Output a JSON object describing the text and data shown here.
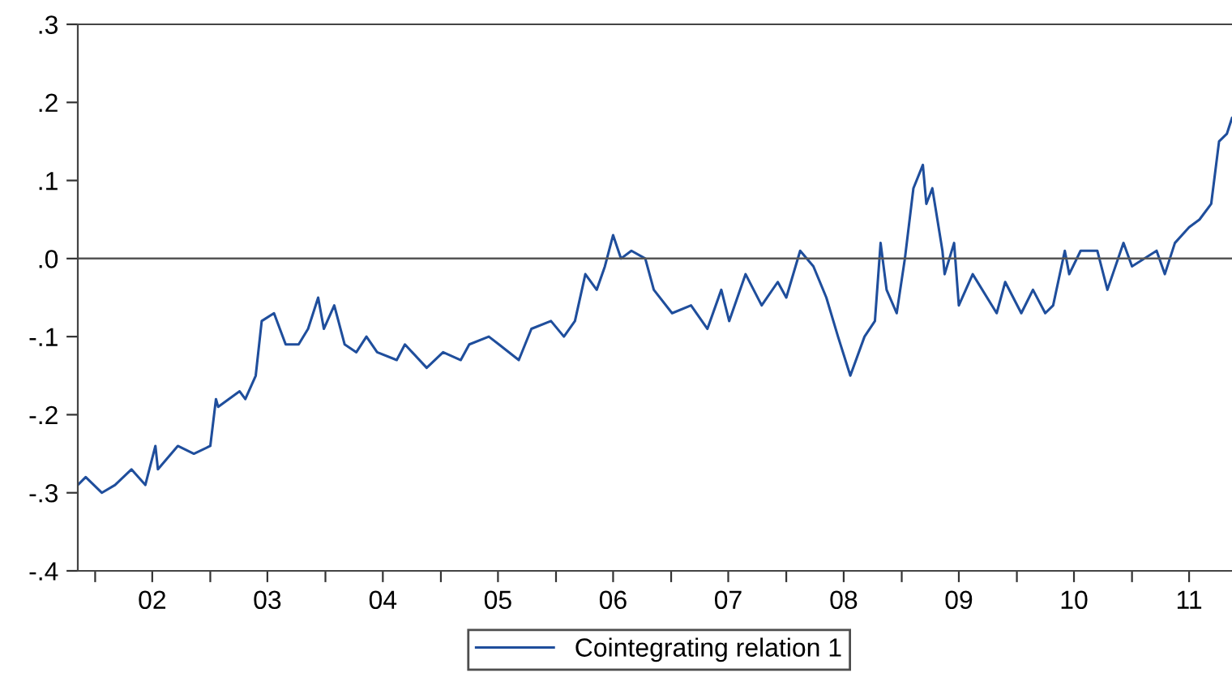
{
  "chart_data": {
    "type": "line",
    "x": [
      "2001-11-07",
      "2001-12-02",
      "2002-01-22",
      "2002-03-05",
      "2002-04-26",
      "2002-06-09",
      "2002-07-11",
      "2002-07-19",
      "2002-09-20",
      "2002-11-10",
      "2003-01-01",
      "2003-01-19",
      "2003-01-26",
      "2003-04-04",
      "2003-04-22",
      "2003-05-25",
      "2003-06-13",
      "2003-07-22",
      "2003-08-28",
      "2003-10-08",
      "2003-11-07",
      "2003-12-09",
      "2003-12-27",
      "2004-01-29",
      "2004-03-02",
      "2004-04-08",
      "2004-05-10",
      "2004-06-13",
      "2004-08-14",
      "2004-09-09",
      "2004-11-17",
      "2005-01-08",
      "2005-03-05",
      "2005-04-01",
      "2005-06-02",
      "2005-07-04",
      "2005-09-05",
      "2005-10-15",
      "2005-12-16",
      "2006-01-26",
      "2006-03-02",
      "2006-04-04",
      "2006-05-10",
      "2006-06-05",
      "2006-07-01",
      "2006-07-26",
      "2006-08-28",
      "2006-10-11",
      "2006-11-07",
      "2007-01-04",
      "2007-03-05",
      "2007-04-26",
      "2007-06-09",
      "2007-07-04",
      "2007-08-25",
      "2007-10-15",
      "2007-12-05",
      "2008-01-01",
      "2008-02-14",
      "2008-03-27",
      "2008-05-07",
      "2008-06-13",
      "2008-07-22",
      "2008-09-05",
      "2008-10-08",
      "2008-10-26",
      "2008-11-14",
      "2008-12-16",
      "2009-01-11",
      "2009-02-07",
      "2009-03-09",
      "2009-03-20",
      "2009-04-08",
      "2009-05-10",
      "2009-05-17",
      "2009-06-16",
      "2009-07-01",
      "2009-08-14",
      "2009-10-29",
      "2009-11-25",
      "2010-01-15",
      "2010-02-21",
      "2010-04-01",
      "2010-04-26",
      "2010-06-02",
      "2010-06-16",
      "2010-07-22",
      "2010-09-13",
      "2010-10-15",
      "2010-12-05",
      "2011-01-01",
      "2011-03-20",
      "2011-04-15",
      "2011-05-17",
      "2011-07-01",
      "2011-08-03",
      "2011-09-09",
      "2011-10-04",
      "2011-10-29",
      "2011-11-14"
    ],
    "series": [
      {
        "name": "Cointegrating relation 1",
        "color": "#1f4e9c",
        "values": [
          -0.29,
          -0.28,
          -0.3,
          -0.29,
          -0.27,
          -0.29,
          -0.24,
          -0.27,
          -0.24,
          -0.25,
          -0.24,
          -0.18,
          -0.19,
          -0.17,
          -0.18,
          -0.15,
          -0.08,
          -0.07,
          -0.11,
          -0.11,
          -0.09,
          -0.05,
          -0.09,
          -0.06,
          -0.11,
          -0.12,
          -0.1,
          -0.12,
          -0.13,
          -0.11,
          -0.14,
          -0.12,
          -0.13,
          -0.11,
          -0.1,
          -0.11,
          -0.13,
          -0.09,
          -0.08,
          -0.1,
          -0.08,
          -0.02,
          -0.04,
          -0.01,
          0.03,
          0.0,
          0.01,
          0.0,
          -0.04,
          -0.07,
          -0.06,
          -0.09,
          -0.04,
          -0.08,
          -0.02,
          -0.06,
          -0.03,
          -0.05,
          0.01,
          -0.01,
          -0.05,
          -0.1,
          -0.15,
          -0.1,
          -0.08,
          0.02,
          -0.04,
          -0.07,
          0.0,
          0.09,
          0.12,
          0.07,
          0.09,
          0.01,
          -0.02,
          0.02,
          -0.06,
          -0.02,
          -0.07,
          -0.03,
          -0.07,
          -0.04,
          -0.07,
          -0.06,
          0.01,
          -0.02,
          0.01,
          0.01,
          -0.04,
          0.02,
          -0.01,
          0.01,
          -0.02,
          0.02,
          0.04,
          0.05,
          0.07,
          0.15,
          0.16,
          0.18
        ]
      }
    ],
    "xlim": [
      "2001-11-07",
      "2011-11-14"
    ],
    "xticks": [
      {
        "value": "2002-01-01",
        "label": null
      },
      {
        "value": "2002-07-01",
        "label": "02"
      },
      {
        "value": "2003-01-01",
        "label": null
      },
      {
        "value": "2003-07-01",
        "label": "03"
      },
      {
        "value": "2004-01-01",
        "label": null
      },
      {
        "value": "2004-07-01",
        "label": "04"
      },
      {
        "value": "2005-01-01",
        "label": null
      },
      {
        "value": "2005-07-01",
        "label": "05"
      },
      {
        "value": "2006-01-01",
        "label": null
      },
      {
        "value": "2006-07-01",
        "label": "06"
      },
      {
        "value": "2007-01-01",
        "label": null
      },
      {
        "value": "2007-07-01",
        "label": "07"
      },
      {
        "value": "2008-01-01",
        "label": null
      },
      {
        "value": "2008-07-01",
        "label": "08"
      },
      {
        "value": "2009-01-01",
        "label": null
      },
      {
        "value": "2009-07-01",
        "label": "09"
      },
      {
        "value": "2010-01-01",
        "label": null
      },
      {
        "value": "2010-07-01",
        "label": "10"
      },
      {
        "value": "2011-01-01",
        "label": null
      },
      {
        "value": "2011-07-01",
        "label": "11"
      }
    ],
    "ylim": [
      -0.4,
      0.3
    ],
    "yticks": [
      {
        "value": -0.4,
        "label": "-.4"
      },
      {
        "value": -0.3,
        "label": "-.3"
      },
      {
        "value": -0.2,
        "label": "-.2"
      },
      {
        "value": -0.1,
        "label": "-.1"
      },
      {
        "value": 0.0,
        "label": ".0"
      },
      {
        "value": 0.1,
        "label": ".1"
      },
      {
        "value": 0.2,
        "label": ".2"
      },
      {
        "value": 0.3,
        "label": ".3"
      }
    ],
    "ref_lines": [
      {
        "axis": "y",
        "value": 0.0,
        "color": "#555555"
      }
    ],
    "grid": false,
    "legend": "bottom",
    "marker": "none",
    "line_style": "solid"
  }
}
